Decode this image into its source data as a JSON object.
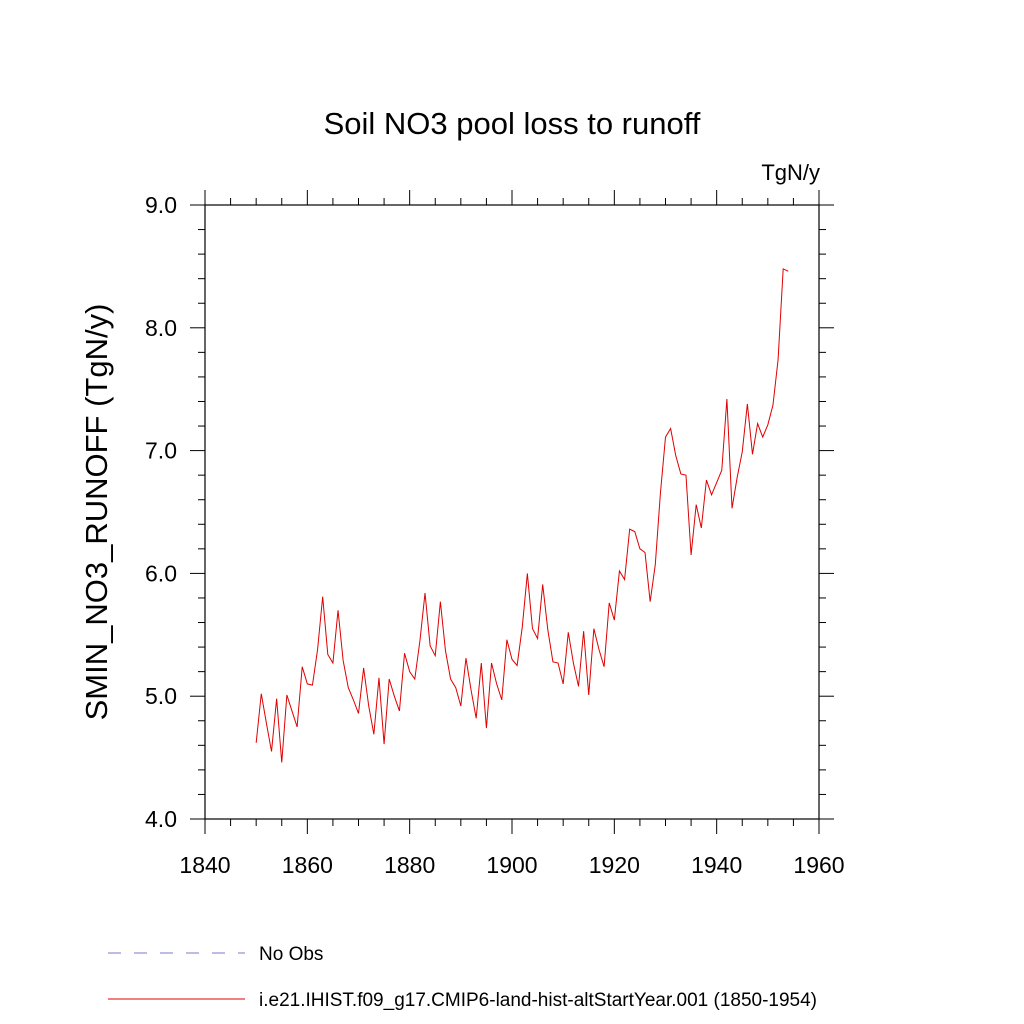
{
  "chart_data": {
    "type": "line",
    "title": "Soil NO3 pool loss to runoff",
    "units": "TgN/y",
    "ylabel": "SMIN_NO3_RUNOFF  (TgN/y)",
    "xlabel": "",
    "xlim": [
      1840,
      1960
    ],
    "ylim": [
      4.0,
      9.0
    ],
    "xticks": [
      "1840",
      "1860",
      "1880",
      "1900",
      "1920",
      "1940",
      "1960"
    ],
    "yticks": [
      "4.0",
      "5.0",
      "6.0",
      "7.0",
      "8.0",
      "9.0"
    ],
    "grid": false,
    "legend_position": "bottom",
    "legend": [
      {
        "label": "No Obs",
        "style": "dashed",
        "color": "#7a7acc"
      },
      {
        "label": "i.e21.IHIST.f09_g17.CMIP6-land-hist-altStartYear.001 (1850-1954)",
        "style": "solid",
        "color": "#e00000"
      }
    ],
    "series": [
      {
        "name": "i.e21.IHIST.f09_g17.CMIP6-land-hist-altStartYear.001 (1850-1954)",
        "color": "#e00000",
        "x": [
          1850,
          1851,
          1852,
          1853,
          1854,
          1855,
          1856,
          1857,
          1858,
          1859,
          1860,
          1861,
          1862,
          1863,
          1864,
          1865,
          1866,
          1867,
          1868,
          1869,
          1870,
          1871,
          1872,
          1873,
          1874,
          1875,
          1876,
          1877,
          1878,
          1879,
          1880,
          1881,
          1882,
          1883,
          1884,
          1885,
          1886,
          1887,
          1888,
          1889,
          1890,
          1891,
          1892,
          1893,
          1894,
          1895,
          1896,
          1897,
          1898,
          1899,
          1900,
          1901,
          1902,
          1903,
          1904,
          1905,
          1906,
          1907,
          1908,
          1909,
          1910,
          1911,
          1912,
          1913,
          1914,
          1915,
          1916,
          1917,
          1918,
          1919,
          1920,
          1921,
          1922,
          1923,
          1924,
          1925,
          1926,
          1927,
          1928,
          1929,
          1930,
          1931,
          1932,
          1933,
          1934,
          1935,
          1936,
          1937,
          1938,
          1939,
          1940,
          1941,
          1942,
          1943,
          1944,
          1945,
          1946,
          1947,
          1948,
          1949,
          1950,
          1951,
          1952,
          1953,
          1954
        ],
        "y": [
          4.62,
          5.02,
          4.78,
          4.55,
          4.98,
          4.46,
          5.01,
          4.88,
          4.75,
          5.24,
          5.1,
          5.09,
          5.38,
          5.81,
          5.34,
          5.27,
          5.7,
          5.29,
          5.07,
          4.97,
          4.86,
          5.23,
          4.92,
          4.69,
          5.15,
          4.61,
          5.14,
          5.0,
          4.88,
          5.35,
          5.2,
          5.14,
          5.45,
          5.84,
          5.41,
          5.33,
          5.77,
          5.37,
          5.14,
          5.07,
          4.92,
          5.31,
          5.05,
          4.82,
          5.27,
          4.74,
          5.27,
          5.1,
          4.97,
          5.46,
          5.3,
          5.25,
          5.56,
          6.0,
          5.55,
          5.47,
          5.91,
          5.54,
          5.28,
          5.27,
          5.1,
          5.52,
          5.27,
          5.08,
          5.53,
          5.01,
          5.55,
          5.38,
          5.24,
          5.76,
          5.62,
          6.02,
          5.95,
          6.36,
          6.34,
          6.2,
          6.17,
          5.77,
          6.07,
          6.65,
          7.11,
          7.18,
          6.96,
          6.81,
          6.8,
          6.15,
          6.56,
          6.37,
          6.76,
          6.64,
          6.74,
          6.84,
          7.42,
          6.53,
          6.78,
          6.99,
          7.38,
          6.97,
          7.22,
          7.11,
          7.21,
          7.37,
          7.74,
          8.48,
          8.46
        ]
      }
    ]
  }
}
